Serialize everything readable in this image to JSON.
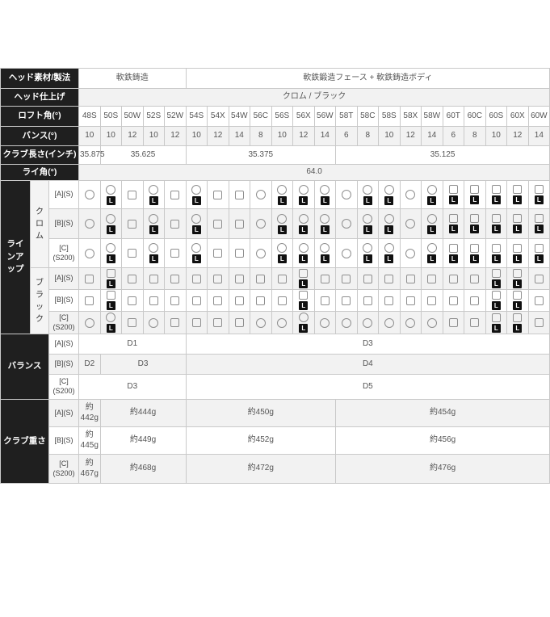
{
  "colors": {
    "header_bg": "#1f1f1f",
    "header_text": "#ffffff",
    "zebra_row": "#f2f2f2",
    "border": "#c9c9c9",
    "value_text": "#555555",
    "badge_bg": "#101010"
  },
  "columns": [
    "48S",
    "50S",
    "50W",
    "52S",
    "52W",
    "54S",
    "54X",
    "54W",
    "56C",
    "56S",
    "56X",
    "56W",
    "58T",
    "58C",
    "58S",
    "58X",
    "58W",
    "60T",
    "60C",
    "60S",
    "60X",
    "60W"
  ],
  "spec_rows": [
    {
      "id": "material",
      "label": "ヘッド素材/製法",
      "cells": [
        {
          "span": 5,
          "text": "軟鉄鋳造"
        },
        {
          "span": 17,
          "text": "軟鉄鍛造フェース + 軟鉄鋳造ボディ"
        }
      ]
    },
    {
      "id": "finish",
      "label": "ヘッド仕上げ",
      "cells": [
        {
          "span": 22,
          "text": "クロム / ブラック"
        }
      ]
    },
    {
      "id": "loft",
      "label": "ロフト角(°)",
      "cells": [
        {
          "span": 1,
          "text": "48S"
        },
        {
          "span": 1,
          "text": "50S"
        },
        {
          "span": 1,
          "text": "50W"
        },
        {
          "span": 1,
          "text": "52S"
        },
        {
          "span": 1,
          "text": "52W"
        },
        {
          "span": 1,
          "text": "54S"
        },
        {
          "span": 1,
          "text": "54X"
        },
        {
          "span": 1,
          "text": "54W"
        },
        {
          "span": 1,
          "text": "56C"
        },
        {
          "span": 1,
          "text": "56S"
        },
        {
          "span": 1,
          "text": "56X"
        },
        {
          "span": 1,
          "text": "56W"
        },
        {
          "span": 1,
          "text": "58T"
        },
        {
          "span": 1,
          "text": "58C"
        },
        {
          "span": 1,
          "text": "58S"
        },
        {
          "span": 1,
          "text": "58X"
        },
        {
          "span": 1,
          "text": "58W"
        },
        {
          "span": 1,
          "text": "60T"
        },
        {
          "span": 1,
          "text": "60C"
        },
        {
          "span": 1,
          "text": "60S"
        },
        {
          "span": 1,
          "text": "60X"
        },
        {
          "span": 1,
          "text": "60W"
        }
      ]
    },
    {
      "id": "bounce",
      "label": "バンス(°)",
      "cells": [
        {
          "span": 1,
          "text": "10"
        },
        {
          "span": 1,
          "text": "10"
        },
        {
          "span": 1,
          "text": "12"
        },
        {
          "span": 1,
          "text": "10"
        },
        {
          "span": 1,
          "text": "12"
        },
        {
          "span": 1,
          "text": "10"
        },
        {
          "span": 1,
          "text": "12"
        },
        {
          "span": 1,
          "text": "14"
        },
        {
          "span": 1,
          "text": "8"
        },
        {
          "span": 1,
          "text": "10"
        },
        {
          "span": 1,
          "text": "12"
        },
        {
          "span": 1,
          "text": "14"
        },
        {
          "span": 1,
          "text": "6"
        },
        {
          "span": 1,
          "text": "8"
        },
        {
          "span": 1,
          "text": "10"
        },
        {
          "span": 1,
          "text": "12"
        },
        {
          "span": 1,
          "text": "14"
        },
        {
          "span": 1,
          "text": "6"
        },
        {
          "span": 1,
          "text": "8"
        },
        {
          "span": 1,
          "text": "10"
        },
        {
          "span": 1,
          "text": "12"
        },
        {
          "span": 1,
          "text": "14"
        }
      ]
    },
    {
      "id": "length",
      "label": "クラブ長さ(インチ)",
      "cells": [
        {
          "span": 1,
          "text": "35.875"
        },
        {
          "span": 4,
          "text": "35.625"
        },
        {
          "span": 7,
          "text": "35.375"
        },
        {
          "span": 10,
          "text": "35.125"
        }
      ]
    },
    {
      "id": "lie",
      "label": "ライ角(°)",
      "cells": [
        {
          "span": 22,
          "text": "64.0"
        }
      ]
    }
  ],
  "lineup": {
    "label": "ラインアップ",
    "badge_label": "L",
    "groups": [
      {
        "id": "chrome",
        "label": "クロム",
        "rows": [
          {
            "sub": "[A](S)",
            "symbols": [
              "o",
              "oL",
              "s",
              "oL",
              "s",
              "oL",
              "s",
              "s",
              "o",
              "oL",
              "oL",
              "oL",
              "o",
              "oL",
              "oL",
              "o",
              "oL",
              "sL",
              "sL",
              "sL",
              "sL",
              "sL"
            ]
          },
          {
            "sub": "[B](S)",
            "symbols": [
              "o",
              "oL",
              "s",
              "oL",
              "s",
              "oL",
              "s",
              "s",
              "o",
              "oL",
              "oL",
              "oL",
              "o",
              "oL",
              "oL",
              "o",
              "oL",
              "sL",
              "sL",
              "sL",
              "sL",
              "sL"
            ]
          },
          {
            "sub": "[C]\n(S200)",
            "symbols": [
              "o",
              "oL",
              "s",
              "oL",
              "s",
              "oL",
              "s",
              "s",
              "o",
              "oL",
              "oL",
              "oL",
              "o",
              "oL",
              "oL",
              "o",
              "oL",
              "sL",
              "sL",
              "sL",
              "sL",
              "sL"
            ]
          }
        ]
      },
      {
        "id": "black",
        "label": "ブラック",
        "rows": [
          {
            "sub": "[A](S)",
            "symbols": [
              "s",
              "sL",
              "s",
              "s",
              "s",
              "s",
              "s",
              "s",
              "s",
              "s",
              "sL",
              "s",
              "s",
              "s",
              "s",
              "s",
              "s",
              "s",
              "s",
              "sL",
              "sL",
              "s"
            ]
          },
          {
            "sub": "[B](S)",
            "symbols": [
              "s",
              "sL",
              "s",
              "s",
              "s",
              "s",
              "s",
              "s",
              "s",
              "s",
              "sL",
              "s",
              "s",
              "s",
              "s",
              "s",
              "s",
              "s",
              "s",
              "sL",
              "sL",
              "s"
            ]
          },
          {
            "sub": "[C]\n(S200)",
            "symbols": [
              "o",
              "oL",
              "s",
              "o",
              "s",
              "s",
              "s",
              "s",
              "o",
              "o",
              "oL",
              "o",
              "o",
              "o",
              "o",
              "o",
              "o",
              "s",
              "s",
              "sL",
              "sL",
              "s"
            ]
          }
        ]
      }
    ]
  },
  "balance": {
    "id": "balance",
    "label": "バランス",
    "rows": [
      {
        "sub": "[A](S)",
        "cells": [
          {
            "span": 5,
            "text": "D1"
          },
          {
            "span": 17,
            "text": "D3"
          }
        ]
      },
      {
        "sub": "[B](S)",
        "cells": [
          {
            "span": 1,
            "text": "D2"
          },
          {
            "span": 4,
            "text": "D3"
          },
          {
            "span": 17,
            "text": "D4"
          }
        ]
      },
      {
        "sub": "[C]\n(S200)",
        "cells": [
          {
            "span": 5,
            "text": "D3"
          },
          {
            "span": 17,
            "text": "D5"
          }
        ]
      }
    ]
  },
  "weight": {
    "id": "weight",
    "label": "クラブ重さ",
    "rows": [
      {
        "sub": "[A](S)",
        "cells": [
          {
            "span": 1,
            "text": "約442g"
          },
          {
            "span": 4,
            "text": "約444g"
          },
          {
            "span": 7,
            "text": "約450g"
          },
          {
            "span": 10,
            "text": "約454g"
          }
        ]
      },
      {
        "sub": "[B](S)",
        "cells": [
          {
            "span": 1,
            "text": "約445g"
          },
          {
            "span": 4,
            "text": "約449g"
          },
          {
            "span": 7,
            "text": "約452g"
          },
          {
            "span": 10,
            "text": "約456g"
          }
        ]
      },
      {
        "sub": "[C]\n(S200)",
        "cells": [
          {
            "span": 1,
            "text": "約467g"
          },
          {
            "span": 4,
            "text": "約468g"
          },
          {
            "span": 7,
            "text": "約472g"
          },
          {
            "span": 10,
            "text": "約476g"
          }
        ]
      }
    ]
  }
}
